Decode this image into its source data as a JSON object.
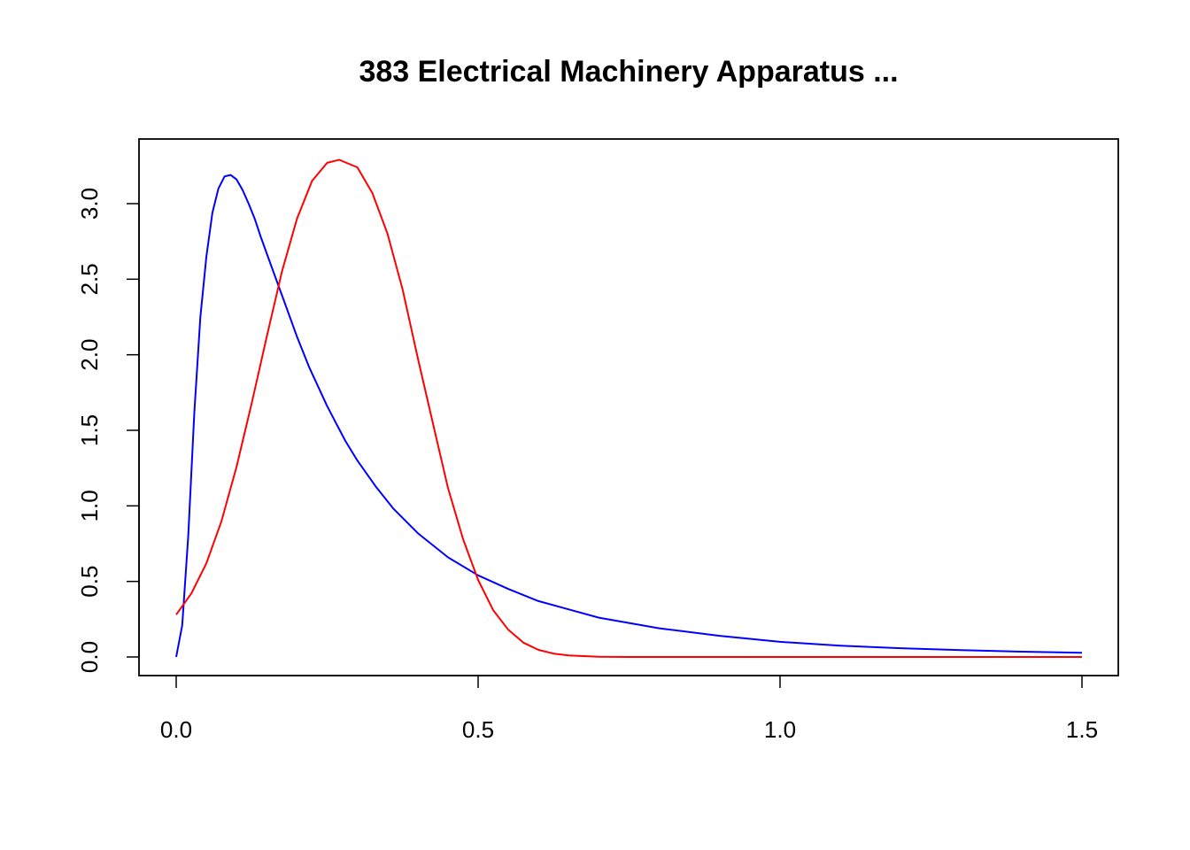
{
  "chart_data": {
    "type": "line",
    "title": "383 Electrical Machinery Apparatus ...",
    "xlabel": "",
    "ylabel": "",
    "xlim": [
      0,
      1.5
    ],
    "ylim": [
      0,
      3.3
    ],
    "x_ticks": [
      0.0,
      0.5,
      1.0,
      1.5
    ],
    "x_tick_labels": [
      "0.0",
      "0.5",
      "1.0",
      "1.5"
    ],
    "y_ticks": [
      0.0,
      0.5,
      1.0,
      1.5,
      2.0,
      2.5,
      3.0
    ],
    "y_tick_labels": [
      "0.0",
      "0.5",
      "1.0",
      "1.5",
      "2.0",
      "2.5",
      "3.0"
    ],
    "grid": false,
    "legend": "none",
    "series": [
      {
        "color": "#0000ff",
        "x": [
          0,
          0.01,
          0.02,
          0.03,
          0.04,
          0.05,
          0.06,
          0.07,
          0.08,
          0.09,
          0.1,
          0.11,
          0.12,
          0.13,
          0.14,
          0.16,
          0.18,
          0.2,
          0.22,
          0.25,
          0.28,
          0.3,
          0.33,
          0.36,
          0.4,
          0.45,
          0.5,
          0.55,
          0.6,
          0.7,
          0.8,
          0.9,
          1.0,
          1.1,
          1.2,
          1.3,
          1.4,
          1.5
        ],
        "y": [
          0.0,
          0.21,
          0.8,
          1.62,
          2.25,
          2.65,
          2.94,
          3.1,
          3.18,
          3.19,
          3.16,
          3.09,
          3.0,
          2.9,
          2.78,
          2.56,
          2.34,
          2.12,
          1.92,
          1.66,
          1.43,
          1.3,
          1.13,
          0.98,
          0.82,
          0.66,
          0.54,
          0.45,
          0.37,
          0.26,
          0.19,
          0.14,
          0.1,
          0.075,
          0.058,
          0.045,
          0.035,
          0.028
        ]
      },
      {
        "color": "#ff0000",
        "x": [
          0,
          0.025,
          0.05,
          0.075,
          0.1,
          0.125,
          0.15,
          0.175,
          0.2,
          0.225,
          0.25,
          0.27,
          0.3,
          0.325,
          0.35,
          0.375,
          0.4,
          0.425,
          0.45,
          0.475,
          0.5,
          0.525,
          0.55,
          0.575,
          0.6,
          0.625,
          0.65,
          0.7,
          0.75,
          0.8,
          0.9,
          1.0,
          1.2,
          1.5
        ],
        "y": [
          0.28,
          0.42,
          0.62,
          0.9,
          1.26,
          1.68,
          2.12,
          2.55,
          2.9,
          3.15,
          3.27,
          3.29,
          3.24,
          3.07,
          2.8,
          2.43,
          1.98,
          1.55,
          1.12,
          0.78,
          0.51,
          0.31,
          0.18,
          0.095,
          0.047,
          0.022,
          0.01,
          0.002,
          0.0,
          0.0,
          0.0,
          0.0,
          0.0,
          0.0
        ]
      }
    ]
  }
}
